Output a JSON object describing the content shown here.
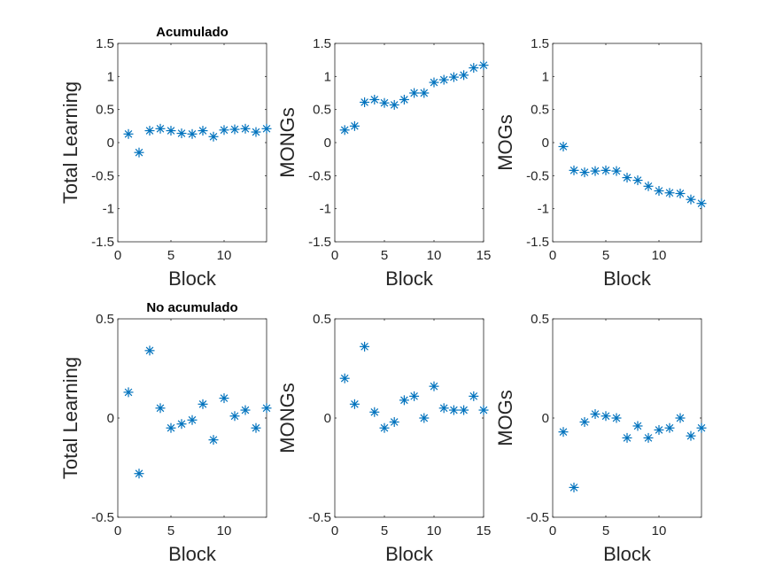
{
  "chart_data": [
    {
      "type": "scatter",
      "row": 0,
      "col": 0,
      "title": "Acumulado",
      "xlabel": "Block",
      "ylabel": "Total Learning",
      "xlim": [
        0,
        14
      ],
      "ylim": [
        -1.5,
        1.5
      ],
      "xticks": [
        0,
        5,
        10
      ],
      "yticks": [
        -1.5,
        -1,
        -0.5,
        0,
        0.5,
        1,
        1.5
      ],
      "xticklabels": [
        "0",
        "5",
        "10"
      ],
      "yticklabels": [
        "-1.5",
        "-1",
        "-0.5",
        "0",
        "0.5",
        "1",
        "1.5"
      ],
      "x": [
        1,
        2,
        3,
        4,
        5,
        6,
        7,
        8,
        9,
        10,
        11,
        12,
        13,
        14
      ],
      "y": [
        0.13,
        -0.15,
        0.18,
        0.21,
        0.18,
        0.14,
        0.13,
        0.18,
        0.09,
        0.19,
        0.2,
        0.21,
        0.16,
        0.21
      ]
    },
    {
      "type": "scatter",
      "row": 0,
      "col": 1,
      "title": "",
      "xlabel": "Block",
      "ylabel": "MONGs",
      "xlim": [
        0,
        15
      ],
      "ylim": [
        -1.5,
        1.5
      ],
      "xticks": [
        0,
        5,
        10,
        15
      ],
      "yticks": [
        -1.5,
        -1,
        -0.5,
        0,
        0.5,
        1,
        1.5
      ],
      "xticklabels": [
        "0",
        "5",
        "10",
        "15"
      ],
      "yticklabels": [
        "-1.5",
        "-1",
        "-0.5",
        "0",
        "0.5",
        "1",
        "1.5"
      ],
      "x": [
        1,
        2,
        3,
        4,
        5,
        6,
        7,
        8,
        9,
        10,
        11,
        12,
        13,
        14,
        15
      ],
      "y": [
        0.19,
        0.25,
        0.61,
        0.65,
        0.6,
        0.57,
        0.65,
        0.75,
        0.75,
        0.91,
        0.95,
        0.99,
        1.02,
        1.13,
        1.17
      ]
    },
    {
      "type": "scatter",
      "row": 0,
      "col": 2,
      "title": "",
      "xlabel": "Block",
      "ylabel": "MOGs",
      "xlim": [
        0,
        14
      ],
      "ylim": [
        -1.5,
        1.5
      ],
      "xticks": [
        0,
        5,
        10
      ],
      "yticks": [
        -1.5,
        -1,
        -0.5,
        0,
        0.5,
        1,
        1.5
      ],
      "xticklabels": [
        "0",
        "5",
        "10"
      ],
      "yticklabels": [
        "-1.5",
        "-1",
        "-0.5",
        "0",
        "0.5",
        "1",
        "1.5"
      ],
      "x": [
        1,
        2,
        3,
        4,
        5,
        6,
        7,
        8,
        9,
        10,
        11,
        12,
        13,
        14
      ],
      "y": [
        -0.06,
        -0.42,
        -0.45,
        -0.43,
        -0.42,
        -0.43,
        -0.53,
        -0.57,
        -0.66,
        -0.73,
        -0.76,
        -0.77,
        -0.86,
        -0.92
      ]
    },
    {
      "type": "scatter",
      "row": 1,
      "col": 0,
      "title": "No acumulado",
      "xlabel": "Block",
      "ylabel": "Total Learning",
      "xlim": [
        0,
        14
      ],
      "ylim": [
        -0.5,
        0.5
      ],
      "xticks": [
        0,
        5,
        10
      ],
      "yticks": [
        -0.5,
        0,
        0.5
      ],
      "xticklabels": [
        "0",
        "5",
        "10"
      ],
      "yticklabels": [
        "-0.5",
        "0",
        "0.5"
      ],
      "x": [
        1,
        2,
        3,
        4,
        5,
        6,
        7,
        8,
        9,
        10,
        11,
        12,
        13,
        14
      ],
      "y": [
        0.13,
        -0.28,
        0.34,
        0.05,
        -0.05,
        -0.03,
        -0.01,
        0.07,
        -0.11,
        0.1,
        0.01,
        0.04,
        -0.05,
        0.05
      ]
    },
    {
      "type": "scatter",
      "row": 1,
      "col": 1,
      "title": "",
      "xlabel": "Block",
      "ylabel": "MONGs",
      "xlim": [
        0,
        15
      ],
      "ylim": [
        -0.5,
        0.5
      ],
      "xticks": [
        0,
        5,
        10,
        15
      ],
      "yticks": [
        -0.5,
        0,
        0.5
      ],
      "xticklabels": [
        "0",
        "5",
        "10",
        "15"
      ],
      "yticklabels": [
        "-0.5",
        "0",
        "0.5"
      ],
      "x": [
        1,
        2,
        3,
        4,
        5,
        6,
        7,
        8,
        9,
        10,
        11,
        12,
        13,
        14,
        15
      ],
      "y": [
        0.2,
        0.07,
        0.36,
        0.03,
        -0.05,
        -0.02,
        0.09,
        0.11,
        0.0,
        0.16,
        0.05,
        0.04,
        0.04,
        0.11,
        0.04
      ]
    },
    {
      "type": "scatter",
      "row": 1,
      "col": 2,
      "title": "",
      "xlabel": "Block",
      "ylabel": "MOGs",
      "xlim": [
        0,
        14
      ],
      "ylim": [
        -0.5,
        0.5
      ],
      "xticks": [
        0,
        5,
        10
      ],
      "yticks": [
        -0.5,
        0,
        0.5
      ],
      "xticklabels": [
        "0",
        "5",
        "10"
      ],
      "yticklabels": [
        "-0.5",
        "0",
        "0.5"
      ],
      "x": [
        1,
        2,
        3,
        4,
        5,
        6,
        7,
        8,
        9,
        10,
        11,
        12,
        13,
        14
      ],
      "y": [
        -0.07,
        -0.35,
        -0.02,
        0.02,
        0.01,
        0.0,
        -0.1,
        -0.04,
        -0.1,
        -0.06,
        -0.05,
        0.0,
        -0.09,
        -0.05
      ]
    }
  ],
  "colors": {
    "marker": "#0072BD",
    "axis": "#262626"
  }
}
